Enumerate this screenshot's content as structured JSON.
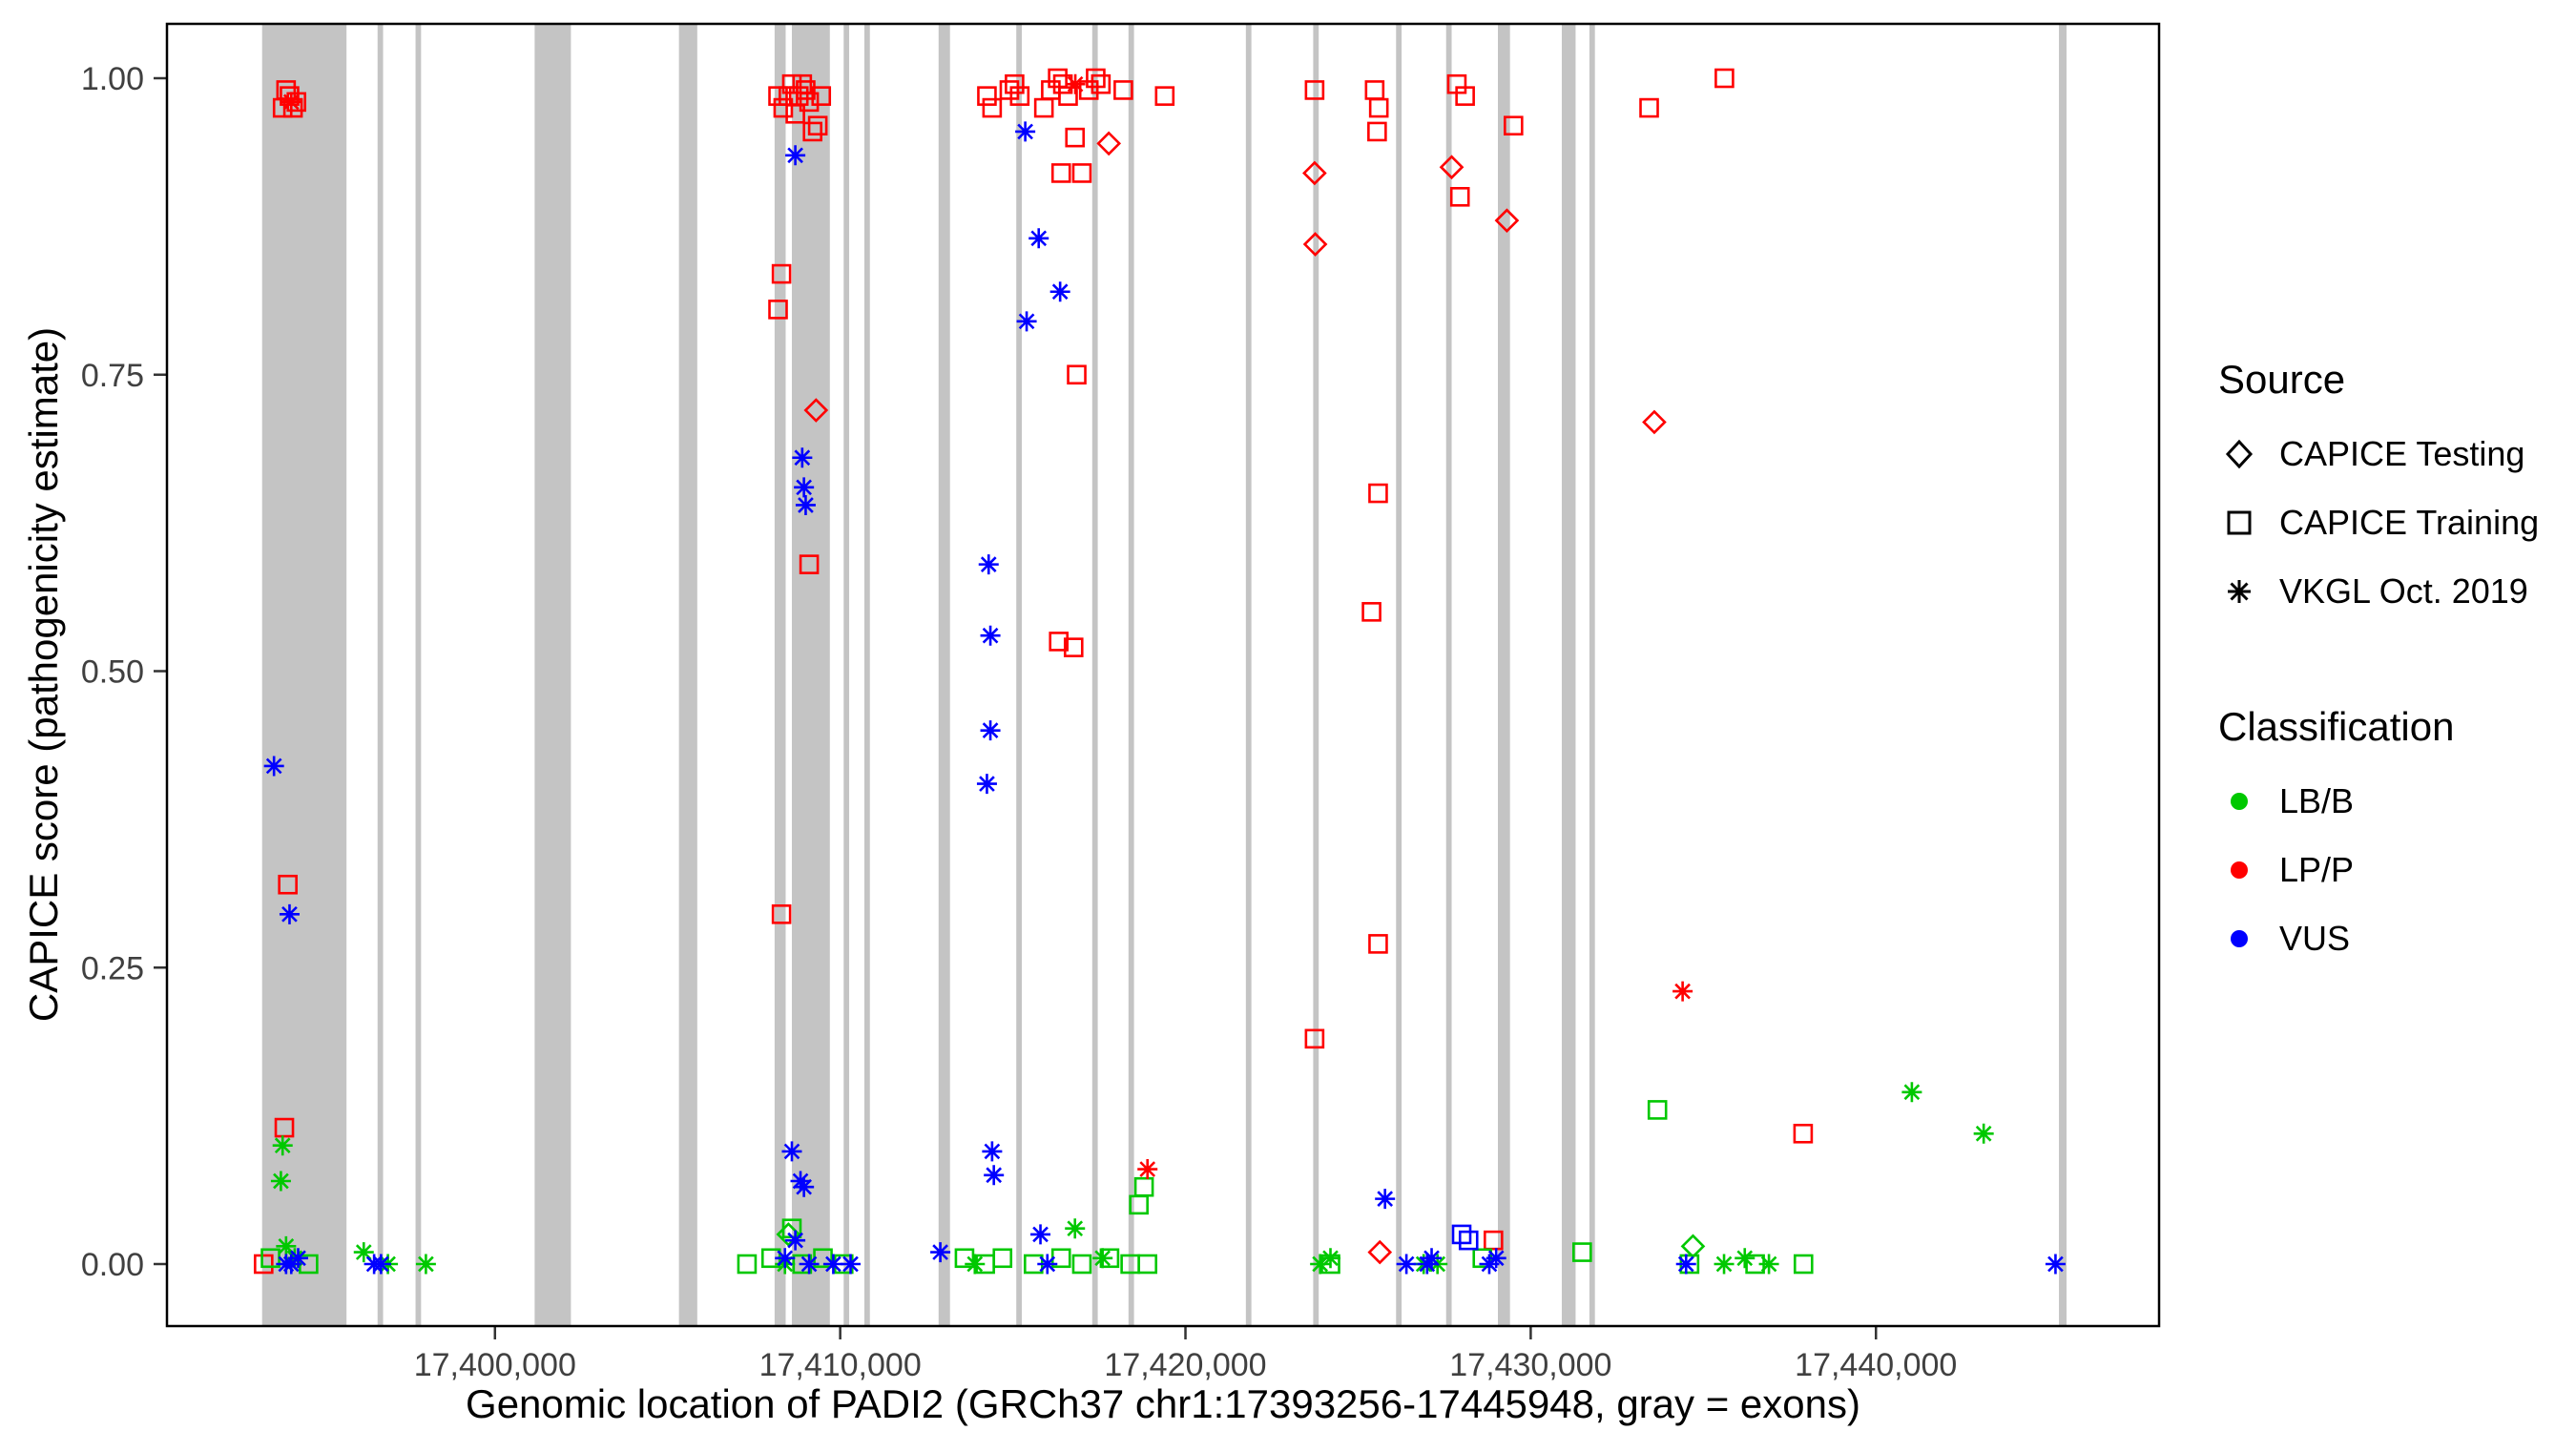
{
  "chart_data": {
    "type": "scatter",
    "title": "",
    "xlabel": "Genomic location of PADI2 (GRCh37 chr1:17393256-17445948, gray = exons)",
    "ylabel": "CAPICE score (pathogenicity estimate)",
    "xlim": [
      17390500,
      17448200
    ],
    "ylim": [
      0,
      1
    ],
    "x_ticks": [
      {
        "value": 17400000,
        "label": "17,400,000"
      },
      {
        "value": 17410000,
        "label": "17,410,000"
      },
      {
        "value": 17420000,
        "label": "17,420,000"
      },
      {
        "value": 17430000,
        "label": "17,430,000"
      },
      {
        "value": 17440000,
        "label": "17,440,000"
      }
    ],
    "y_ticks": [
      {
        "value": 0,
        "label": "0.00"
      },
      {
        "value": 0.25,
        "label": "0.25"
      },
      {
        "value": 0.5,
        "label": "0.50"
      },
      {
        "value": 0.75,
        "label": "0.75"
      },
      {
        "value": 1,
        "label": "1.00"
      }
    ],
    "exon_color": "#C4C4C4",
    "exons": [
      [
        17393256,
        17395700
      ],
      [
        17396600,
        17396760
      ],
      [
        17397700,
        17397860
      ],
      [
        17401150,
        17402200
      ],
      [
        17405330,
        17405860
      ],
      [
        17408100,
        17408420
      ],
      [
        17408600,
        17409700
      ],
      [
        17410100,
        17410260
      ],
      [
        17410700,
        17410860
      ],
      [
        17412850,
        17413180
      ],
      [
        17415100,
        17415260
      ],
      [
        17417300,
        17417460
      ],
      [
        17418350,
        17418510
      ],
      [
        17421750,
        17421910
      ],
      [
        17423700,
        17423860
      ],
      [
        17426100,
        17426260
      ],
      [
        17427550,
        17427710
      ],
      [
        17429050,
        17429400
      ],
      [
        17430900,
        17431300
      ],
      [
        17431700,
        17431860
      ],
      [
        17445300,
        17445520
      ]
    ],
    "colors": {
      "lbb": "#00C800",
      "lpp": "#FF0000",
      "vus": "#0000FF"
    },
    "legend": {
      "source": {
        "title": "Source",
        "items": [
          {
            "label": "CAPICE Testing",
            "shape": "diamond"
          },
          {
            "label": "CAPICE Training",
            "shape": "square"
          },
          {
            "label": "VKGL Oct. 2019",
            "shape": "asterisk"
          }
        ]
      },
      "classification": {
        "title": "Classification",
        "items": [
          {
            "label": "LB/B",
            "color": "#00C800"
          },
          {
            "label": "LP/P",
            "color": "#FF0000"
          },
          {
            "label": "VUS",
            "color": "#0000FF"
          }
        ]
      }
    },
    "series": [
      {
        "name": "CAPICE Training - LP/P",
        "source": "CAPICE Training",
        "classification": "LP/P",
        "shape": "square",
        "color": "#FF0000",
        "points": [
          [
            17393300,
            0.0
          ],
          [
            17393850,
            0.975
          ],
          [
            17393950,
            0.99
          ],
          [
            17394050,
            0.985
          ],
          [
            17394150,
            0.975
          ],
          [
            17394250,
            0.98
          ],
          [
            17393900,
            0.115
          ],
          [
            17394000,
            0.32
          ],
          [
            17408200,
            0.985
          ],
          [
            17408350,
            0.975
          ],
          [
            17408500,
            0.985
          ],
          [
            17408600,
            0.995
          ],
          [
            17408700,
            0.97
          ],
          [
            17408800,
            0.985
          ],
          [
            17408900,
            0.995
          ],
          [
            17409000,
            0.99
          ],
          [
            17409100,
            0.98
          ],
          [
            17409200,
            0.955
          ],
          [
            17409350,
            0.96
          ],
          [
            17409450,
            0.985
          ],
          [
            17408200,
            0.805
          ],
          [
            17408300,
            0.835
          ],
          [
            17408300,
            0.295
          ],
          [
            17409100,
            0.59
          ],
          [
            17414250,
            0.985
          ],
          [
            17414400,
            0.975
          ],
          [
            17414900,
            0.99
          ],
          [
            17415050,
            0.995
          ],
          [
            17415200,
            0.985
          ],
          [
            17415900,
            0.975
          ],
          [
            17416100,
            0.99
          ],
          [
            17416300,
            1.0
          ],
          [
            17416450,
            0.995
          ],
          [
            17416600,
            0.985
          ],
          [
            17416800,
            0.95
          ],
          [
            17416400,
            0.92
          ],
          [
            17417000,
            0.92
          ],
          [
            17416850,
            0.75
          ],
          [
            17416330,
            0.525
          ],
          [
            17416760,
            0.52
          ],
          [
            17417200,
            0.99
          ],
          [
            17417400,
            1.0
          ],
          [
            17417550,
            0.995
          ],
          [
            17418200,
            0.99
          ],
          [
            17419400,
            0.985
          ],
          [
            17423740,
            0.99
          ],
          [
            17423740,
            0.19
          ],
          [
            17425480,
            0.99
          ],
          [
            17425600,
            0.975
          ],
          [
            17425550,
            0.955
          ],
          [
            17425580,
            0.65
          ],
          [
            17425390,
            0.55
          ],
          [
            17425580,
            0.27
          ],
          [
            17427860,
            0.995
          ],
          [
            17428100,
            0.985
          ],
          [
            17427950,
            0.9
          ],
          [
            17428920,
            0.02
          ],
          [
            17429500,
            0.96
          ],
          [
            17433430,
            0.975
          ],
          [
            17435610,
            1.0
          ],
          [
            17437890,
            0.11
          ]
        ]
      },
      {
        "name": "CAPICE Training - LB/B",
        "source": "CAPICE Training",
        "classification": "LB/B",
        "shape": "square",
        "color": "#00C800",
        "points": [
          [
            17393500,
            0.005
          ],
          [
            17394600,
            0.0
          ],
          [
            17407300,
            0.0
          ],
          [
            17408000,
            0.005
          ],
          [
            17408600,
            0.03
          ],
          [
            17408900,
            0.0
          ],
          [
            17409500,
            0.005
          ],
          [
            17410100,
            0.0
          ],
          [
            17413600,
            0.005
          ],
          [
            17414200,
            0.0
          ],
          [
            17414700,
            0.005
          ],
          [
            17415600,
            0.0
          ],
          [
            17416400,
            0.005
          ],
          [
            17417000,
            0.0
          ],
          [
            17417800,
            0.005
          ],
          [
            17418400,
            0.0
          ],
          [
            17418650,
            0.05
          ],
          [
            17418800,
            0.065
          ],
          [
            17418900,
            0.0
          ],
          [
            17424200,
            0.0
          ],
          [
            17428600,
            0.005
          ],
          [
            17431490,
            0.01
          ],
          [
            17433670,
            0.13
          ],
          [
            17434600,
            0.0
          ],
          [
            17436500,
            0.0
          ],
          [
            17437900,
            0.0
          ]
        ]
      },
      {
        "name": "CAPICE Training - VUS",
        "source": "CAPICE Training",
        "classification": "VUS",
        "shape": "square",
        "color": "#0000FF",
        "points": [
          [
            17428000,
            0.025
          ],
          [
            17428200,
            0.02
          ]
        ]
      },
      {
        "name": "CAPICE Testing - LP/P",
        "source": "CAPICE Testing",
        "classification": "LP/P",
        "shape": "diamond",
        "color": "#FF0000",
        "points": [
          [
            17409300,
            0.72
          ],
          [
            17417780,
            0.945
          ],
          [
            17423740,
            0.92
          ],
          [
            17423760,
            0.86
          ],
          [
            17427710,
            0.925
          ],
          [
            17429310,
            0.88
          ],
          [
            17433580,
            0.71
          ],
          [
            17425630,
            0.01
          ]
        ]
      },
      {
        "name": "CAPICE Testing - LB/B",
        "source": "CAPICE Testing",
        "classification": "LB/B",
        "shape": "diamond",
        "color": "#00C800",
        "points": [
          [
            17408500,
            0.025
          ],
          [
            17434700,
            0.015
          ]
        ]
      },
      {
        "name": "VKGL Oct. 2019 - LP/P",
        "source": "VKGL Oct. 2019",
        "classification": "LP/P",
        "shape": "asterisk",
        "color": "#FF0000",
        "points": [
          [
            17394100,
            0.98
          ],
          [
            17416810,
            0.995
          ],
          [
            17418900,
            0.08
          ],
          [
            17434400,
            0.23
          ]
        ]
      },
      {
        "name": "VKGL Oct. 2019 - LB/B",
        "source": "VKGL Oct. 2019",
        "classification": "LB/B",
        "shape": "asterisk",
        "color": "#00C800",
        "points": [
          [
            17393800,
            0.07
          ],
          [
            17393850,
            0.1
          ],
          [
            17393950,
            0.015
          ],
          [
            17394200,
            0.005
          ],
          [
            17396200,
            0.01
          ],
          [
            17396900,
            0.0
          ],
          [
            17398000,
            0.0
          ],
          [
            17408400,
            0.0
          ],
          [
            17413900,
            0.0
          ],
          [
            17416800,
            0.03
          ],
          [
            17417600,
            0.005
          ],
          [
            17423900,
            0.0
          ],
          [
            17424200,
            0.005
          ],
          [
            17426900,
            0.0
          ],
          [
            17427300,
            0.0
          ],
          [
            17435600,
            0.0
          ],
          [
            17436200,
            0.005
          ],
          [
            17436900,
            0.0
          ],
          [
            17441040,
            0.145
          ],
          [
            17443120,
            0.11
          ]
        ]
      },
      {
        "name": "VKGL Oct. 2019 - VUS",
        "source": "VKGL Oct. 2019",
        "classification": "VUS",
        "shape": "asterisk",
        "color": "#0000FF",
        "points": [
          [
            17393600,
            0.42
          ],
          [
            17394050,
            0.295
          ],
          [
            17393950,
            0.0
          ],
          [
            17394100,
            0.0
          ],
          [
            17394300,
            0.005
          ],
          [
            17396500,
            0.0
          ],
          [
            17396700,
            0.0
          ],
          [
            17408700,
            0.935
          ],
          [
            17408900,
            0.68
          ],
          [
            17408950,
            0.655
          ],
          [
            17409000,
            0.64
          ],
          [
            17408600,
            0.095
          ],
          [
            17408850,
            0.07
          ],
          [
            17408950,
            0.065
          ],
          [
            17408400,
            0.005
          ],
          [
            17408700,
            0.02
          ],
          [
            17409100,
            0.0
          ],
          [
            17409800,
            0.0
          ],
          [
            17410300,
            0.0
          ],
          [
            17415360,
            0.955
          ],
          [
            17415750,
            0.865
          ],
          [
            17416370,
            0.82
          ],
          [
            17415400,
            0.795
          ],
          [
            17414300,
            0.59
          ],
          [
            17414350,
            0.53
          ],
          [
            17414350,
            0.45
          ],
          [
            17414250,
            0.405
          ],
          [
            17414400,
            0.095
          ],
          [
            17414450,
            0.075
          ],
          [
            17412900,
            0.01
          ],
          [
            17415800,
            0.025
          ],
          [
            17416000,
            0.0
          ],
          [
            17425780,
            0.055
          ],
          [
            17426400,
            0.0
          ],
          [
            17427000,
            0.0
          ],
          [
            17427130,
            0.005
          ],
          [
            17428800,
            0.0
          ],
          [
            17429000,
            0.005
          ],
          [
            17434500,
            0.0
          ],
          [
            17445200,
            0.0
          ]
        ]
      }
    ]
  }
}
